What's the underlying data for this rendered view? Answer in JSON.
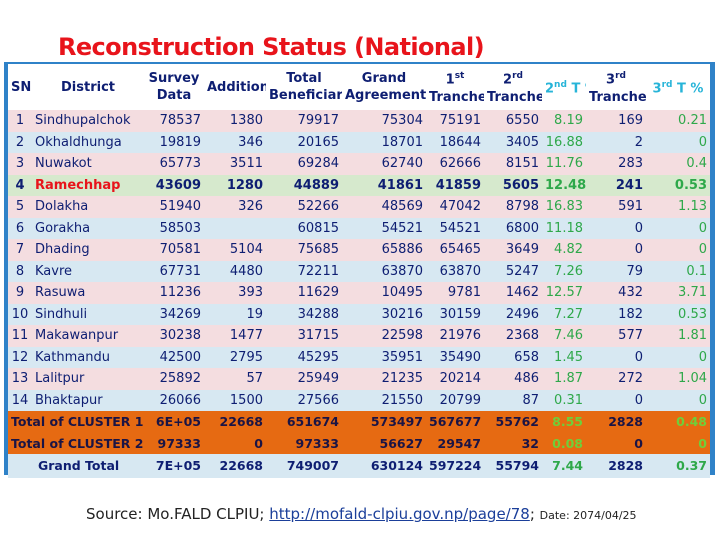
{
  "title": "Reconstruction Status (National)",
  "headers": {
    "sn": "SN",
    "district": "District",
    "survey_1": "Survey",
    "survey_2": "Data",
    "addition": "Addition",
    "total_1": "Total",
    "total_2": "Beneficiary",
    "grand_1": "Grand",
    "grand_2": "Agreement",
    "t1_num": "1",
    "t1_sup": "st",
    "t1_word": "Tranche",
    "t2_num": "2",
    "t2_sup": "rd",
    "t2_word": "Tranche",
    "t2pct_num": "2",
    "t2pct_sup": "nd",
    "t2pct_word": "T %",
    "t3_num": "3",
    "t3_sup": "rd",
    "t3_word": "Tranche",
    "t3pct_num": "3",
    "t3pct_sup": "rd",
    "t3pct_word": "T %"
  },
  "rows": [
    {
      "sn": "1",
      "district": "Sindhupalchok",
      "survey": "78537",
      "addition": "1380",
      "total": "79917",
      "grand": "75304",
      "t1": "75191",
      "t2": "6550",
      "t2pct": "8.19",
      "t3": "169",
      "t3pct": "0.21"
    },
    {
      "sn": "2",
      "district": "Okhaldhunga",
      "survey": "19819",
      "addition": "346",
      "total": "20165",
      "grand": "18701",
      "t1": "18644",
      "t2": "3405",
      "t2pct": "16.88",
      "t3": "2",
      "t3pct": "0"
    },
    {
      "sn": "3",
      "district": "Nuwakot",
      "survey": "65773",
      "addition": "3511",
      "total": "69284",
      "grand": "62740",
      "t1": "62666",
      "t2": "8151",
      "t2pct": "11.76",
      "t3": "283",
      "t3pct": "0.4"
    },
    {
      "sn": "4",
      "district": "Ramechhap",
      "survey": "43609",
      "addition": "1280",
      "total": "44889",
      "grand": "41861",
      "t1": "41859",
      "t2": "5605",
      "t2pct": "12.48",
      "t3": "241",
      "t3pct": "0.53"
    },
    {
      "sn": "5",
      "district": "Dolakha",
      "survey": "51940",
      "addition": "326",
      "total": "52266",
      "grand": "48569",
      "t1": "47042",
      "t2": "8798",
      "t2pct": "16.83",
      "t3": "591",
      "t3pct": "1.13"
    },
    {
      "sn": "6",
      "district": "Gorakha",
      "survey": "58503",
      "addition": "",
      "total": "60815",
      "grand": "54521",
      "t1": "54521",
      "t2": "6800",
      "t2pct": "11.18",
      "t3": "0",
      "t3pct": "0"
    },
    {
      "sn": "7",
      "district": "Dhading",
      "survey": "70581",
      "addition": "5104",
      "total": "75685",
      "grand": "65886",
      "t1": "65465",
      "t2": "3649",
      "t2pct": "4.82",
      "t3": "0",
      "t3pct": "0"
    },
    {
      "sn": "8",
      "district": "Kavre",
      "survey": "67731",
      "addition": "4480",
      "total": "72211",
      "grand": "63870",
      "t1": "63870",
      "t2": "5247",
      "t2pct": "7.26",
      "t3": "79",
      "t3pct": "0.1"
    },
    {
      "sn": "9",
      "district": "Rasuwa",
      "survey": "11236",
      "addition": "393",
      "total": "11629",
      "grand": "10495",
      "t1": "9781",
      "t2": "1462",
      "t2pct": "12.57",
      "t3": "432",
      "t3pct": "3.71"
    },
    {
      "sn": "10",
      "district": "Sindhuli",
      "survey": "34269",
      "addition": "19",
      "total": "34288",
      "grand": "30216",
      "t1": "30159",
      "t2": "2496",
      "t2pct": "7.27",
      "t3": "182",
      "t3pct": "0.53"
    },
    {
      "sn": "11",
      "district": "Makawanpur",
      "survey": "30238",
      "addition": "1477",
      "total": "31715",
      "grand": "22598",
      "t1": "21976",
      "t2": "2368",
      "t2pct": "7.46",
      "t3": "577",
      "t3pct": "1.81"
    },
    {
      "sn": "12",
      "district": "Kathmandu",
      "survey": "42500",
      "addition": "2795",
      "total": "45295",
      "grand": "35951",
      "t1": "35490",
      "t2": "658",
      "t2pct": "1.45",
      "t3": "0",
      "t3pct": "0"
    },
    {
      "sn": "13",
      "district": "Lalitpur",
      "survey": "25892",
      "addition": "57",
      "total": "25949",
      "grand": "21235",
      "t1": "20214",
      "t2": "486",
      "t2pct": "1.87",
      "t3": "272",
      "t3pct": "1.04"
    },
    {
      "sn": "14",
      "district": "Bhaktapur",
      "survey": "26066",
      "addition": "1500",
      "total": "27566",
      "grand": "21550",
      "t1": "20799",
      "t2": "87",
      "t2pct": "0.31",
      "t3": "0",
      "t3pct": "0"
    }
  ],
  "totals": [
    {
      "label": "Total of CLUSTER 1",
      "survey": "6E+05",
      "addition": "22668",
      "total": "651674",
      "grand": "573497",
      "t1": "567677",
      "t2": "55762",
      "t2pct": "8.55",
      "t3": "2828",
      "t3pct": "0.48"
    },
    {
      "label": "Total of CLUSTER 2",
      "survey": "97333",
      "addition": "0",
      "total": "97333",
      "grand": "56627",
      "t1": "29547",
      "t2": "32",
      "t2pct": "0.08",
      "t3": "0",
      "t3pct": "0"
    }
  ],
  "grand_total": {
    "label": "Grand Total",
    "survey": "7E+05",
    "addition": "22668",
    "total": "749007",
    "grand": "630124",
    "t1": "597224",
    "t2": "55794",
    "t2pct": "7.44",
    "t3": "2828",
    "t3pct": "0.37"
  },
  "source": {
    "prefix": "Source: Mo.FALD CLPIU; ",
    "link": "http://mofald-clpiu.gov.np/page/78",
    "sep": "; ",
    "date": "Date: 2074/04/25"
  }
}
